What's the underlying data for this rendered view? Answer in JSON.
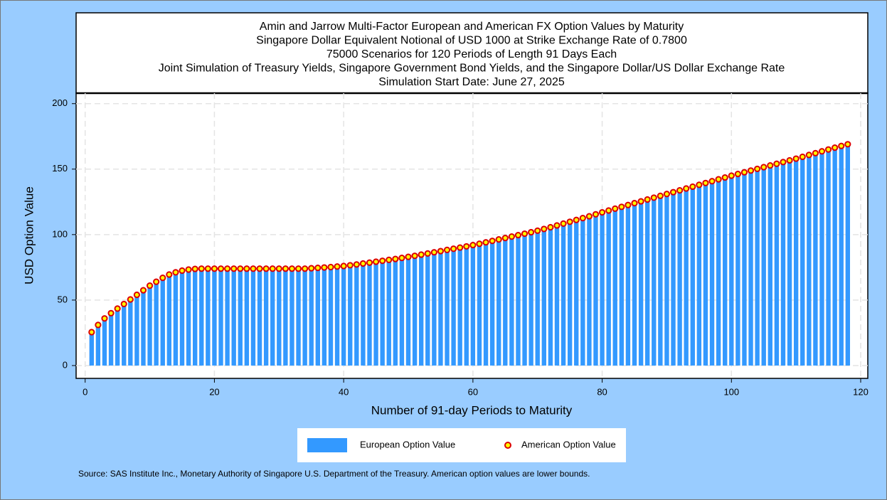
{
  "chart_data": {
    "type": "bar_scatter",
    "title": [
      "Amin and Jarrow Multi-Factor European and American FX Option Values by Maturity",
      "Singapore Dollar Equivalent Notional of USD 1000 at Strike Exchange Rate of  0.7800",
      "75000 Scenarios for 120 Periods of Length 91 Days Each",
      "Joint Simulation of Treasury Yields, Singapore Government Bond Yields, and the Singapore Dollar/US Dollar Exchange Rate",
      "Simulation Start Date: June 27, 2025"
    ],
    "xlabel": "Number of 91-day Periods to Maturity",
    "ylabel": "USD Option Value",
    "source": "Source: SAS Institute Inc., Monetary Authority of Singapore U.S. Department of the Treasury. American option values are lower bounds.",
    "x": [
      1,
      2,
      3,
      4,
      5,
      6,
      7,
      8,
      9,
      10,
      11,
      12,
      13,
      14,
      15,
      16,
      17,
      18,
      19,
      20,
      21,
      22,
      23,
      24,
      25,
      26,
      27,
      28,
      29,
      30,
      31,
      32,
      33,
      34,
      35,
      36,
      37,
      38,
      39,
      40,
      41,
      42,
      43,
      44,
      45,
      46,
      47,
      48,
      49,
      50,
      51,
      52,
      53,
      54,
      55,
      56,
      57,
      58,
      59,
      60,
      61,
      62,
      63,
      64,
      65,
      66,
      67,
      68,
      69,
      70,
      71,
      72,
      73,
      74,
      75,
      76,
      77,
      78,
      79,
      80,
      81,
      82,
      83,
      84,
      85,
      86,
      87,
      88,
      89,
      90,
      91,
      92,
      93,
      94,
      95,
      96,
      97,
      98,
      99,
      100,
      101,
      102,
      103,
      104,
      105,
      106,
      107,
      108,
      109,
      110,
      111,
      112,
      113,
      114,
      115,
      116,
      117,
      118
    ],
    "series": [
      {
        "name": "European Option Value",
        "color": "#3399ff",
        "values": [
          25.5,
          31,
          36,
          40,
          43.5,
          47,
          50.5,
          54,
          57.5,
          61,
          64,
          67,
          69.5,
          71.2,
          72.5,
          73.3,
          73.8,
          74,
          74,
          74,
          74,
          74,
          74,
          74,
          74,
          74,
          74,
          74,
          74,
          74,
          74,
          74,
          74,
          74,
          74.3,
          74.6,
          74.9,
          75.2,
          75.6,
          76,
          76.6,
          77.2,
          77.9,
          78.6,
          79.3,
          80,
          80.7,
          81.4,
          82.2,
          83,
          83.8,
          84.7,
          85.6,
          86.5,
          87.4,
          88.3,
          89.2,
          90.1,
          91,
          92,
          93,
          94.1,
          95.2,
          96.3,
          97.4,
          98.5,
          99.6,
          100.7,
          101.8,
          103,
          104.3,
          105.6,
          107,
          108.4,
          109.8,
          111.2,
          112.6,
          114,
          115.5,
          117,
          118.4,
          119.8,
          121.2,
          122.6,
          124,
          125.4,
          126.8,
          128.2,
          129.6,
          131,
          132.4,
          133.8,
          135.2,
          136.6,
          138,
          139.4,
          140.8,
          142.2,
          143.6,
          145,
          146.3,
          147.6,
          148.9,
          150.2,
          151.5,
          152.8,
          154.1,
          155.4,
          156.7,
          158,
          159.4,
          160.8,
          162.2,
          163.6,
          165,
          166.4,
          167.7,
          169
        ]
      },
      {
        "name": "American Option Value",
        "color": "#ffff00",
        "edgecolor": "#dd0000",
        "values": [
          25.5,
          31,
          36,
          40,
          43.5,
          47,
          50.5,
          54,
          57.5,
          61,
          64,
          67,
          69.5,
          71.2,
          72.5,
          73.3,
          73.8,
          74,
          74,
          74,
          74,
          74,
          74,
          74,
          74,
          74,
          74,
          74,
          74,
          74,
          74,
          74,
          74,
          74,
          74.3,
          74.6,
          74.9,
          75.2,
          75.6,
          76,
          76.6,
          77.2,
          77.9,
          78.6,
          79.3,
          80,
          80.7,
          81.4,
          82.2,
          83,
          83.8,
          84.7,
          85.6,
          86.5,
          87.4,
          88.3,
          89.2,
          90.1,
          91,
          92,
          93,
          94.1,
          95.2,
          96.3,
          97.4,
          98.5,
          99.6,
          100.7,
          101.8,
          103,
          104.3,
          105.6,
          107,
          108.4,
          109.8,
          111.2,
          112.6,
          114,
          115.5,
          117,
          118.4,
          119.8,
          121.2,
          122.6,
          124,
          125.4,
          126.8,
          128.2,
          129.6,
          131,
          132.4,
          133.8,
          135.2,
          136.6,
          138,
          139.4,
          140.8,
          142.2,
          143.6,
          145,
          146.3,
          147.6,
          148.9,
          150.2,
          151.5,
          152.8,
          154.1,
          155.4,
          156.7,
          158,
          159.4,
          160.8,
          162.2,
          163.6,
          165,
          166.4,
          167.7,
          169
        ]
      }
    ],
    "xlim": [
      -1.4,
      121.1
    ],
    "xticks": [
      0,
      20,
      40,
      60,
      80,
      100,
      120
    ],
    "ylim": [
      -9.8,
      208
    ],
    "yticks": [
      0,
      50,
      100,
      150,
      200
    ],
    "grid": true
  }
}
